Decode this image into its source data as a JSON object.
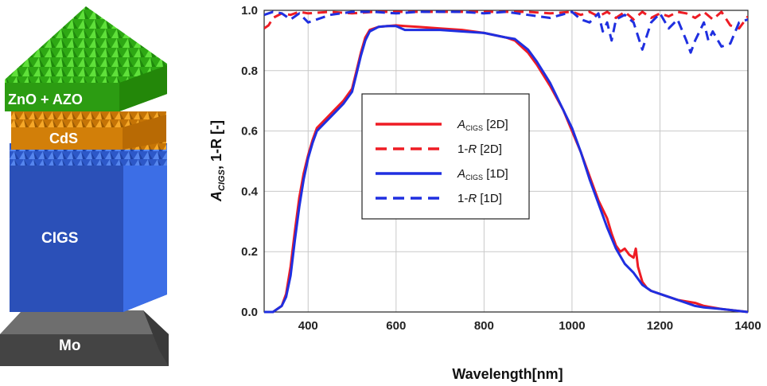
{
  "stack": {
    "layers": [
      {
        "label": "ZnO + AZO",
        "color": "#3ec61d"
      },
      {
        "label": "CdS",
        "color": "#e8920f"
      },
      {
        "label": "CIGS",
        "color": "#3a67d8"
      },
      {
        "label": "Mo",
        "color": "#555555"
      }
    ]
  },
  "chart_data": {
    "type": "line",
    "xlabel": "Wavelength[nm]",
    "ylabel_main": "A",
    "ylabel_sub": "CIGS",
    "ylabel_rest": ", 1-R [-]",
    "xlim": [
      300,
      1400
    ],
    "ylim": [
      0,
      1.0
    ],
    "xticks": [
      "400",
      "600",
      "800",
      "1000",
      "1200",
      "1400"
    ],
    "yticks": [
      "0.0",
      "0.2",
      "0.4",
      "0.6",
      "0.8",
      "1.0"
    ],
    "grid": true,
    "legend_position": "center-left",
    "legend": [
      {
        "main": "A",
        "sub": "CIGS",
        "tail": " [2D]",
        "color": "#ee1c24",
        "dash": "solid"
      },
      {
        "main": "1-",
        "italic": "R",
        "tail": " [2D]",
        "color": "#ee1c24",
        "dash": "dashed"
      },
      {
        "main": "A",
        "sub": "CIGS",
        "tail": " [1D]",
        "color": "#1f2fe0",
        "dash": "solid"
      },
      {
        "main": "1-",
        "italic": "R",
        "tail": " [1D]",
        "color": "#1f2fe0",
        "dash": "dashed"
      }
    ],
    "series": [
      {
        "name": "A_CIGS [2D]",
        "color": "#ee1c24",
        "dash": "solid",
        "x": [
          300,
          320,
          340,
          350,
          360,
          370,
          380,
          390,
          400,
          410,
          420,
          440,
          460,
          480,
          500,
          510,
          520,
          530,
          540,
          560,
          580,
          600,
          620,
          650,
          700,
          750,
          800,
          850,
          870,
          900,
          920,
          950,
          980,
          1000,
          1020,
          1040,
          1060,
          1070,
          1080,
          1090,
          1100,
          1110,
          1120,
          1130,
          1140,
          1145,
          1150,
          1160,
          1170,
          1180,
          1200,
          1220,
          1240,
          1260,
          1280,
          1300,
          1340,
          1400
        ],
        "y": [
          0.0,
          0.0,
          0.02,
          0.06,
          0.15,
          0.27,
          0.38,
          0.46,
          0.52,
          0.57,
          0.61,
          0.64,
          0.67,
          0.7,
          0.74,
          0.8,
          0.86,
          0.91,
          0.935,
          0.945,
          0.948,
          0.95,
          0.948,
          0.945,
          0.94,
          0.935,
          0.925,
          0.91,
          0.9,
          0.86,
          0.82,
          0.75,
          0.67,
          0.6,
          0.53,
          0.45,
          0.37,
          0.34,
          0.31,
          0.26,
          0.22,
          0.2,
          0.21,
          0.19,
          0.18,
          0.21,
          0.15,
          0.1,
          0.08,
          0.07,
          0.06,
          0.05,
          0.04,
          0.035,
          0.03,
          0.02,
          0.01,
          0.0
        ]
      },
      {
        "name": "1-R [2D]",
        "color": "#ee1c24",
        "dash": "dashed",
        "x": [
          300,
          310,
          320,
          340,
          360,
          380,
          400,
          450,
          500,
          550,
          600,
          650,
          700,
          750,
          800,
          850,
          900,
          950,
          1000,
          1020,
          1040,
          1060,
          1080,
          1100,
          1120,
          1140,
          1160,
          1180,
          1200,
          1220,
          1240,
          1260,
          1280,
          1300,
          1320,
          1340,
          1360,
          1380,
          1400
        ],
        "y": [
          0.94,
          0.95,
          0.975,
          0.99,
          0.985,
          0.995,
          0.99,
          0.995,
          0.99,
          0.995,
          0.995,
          0.995,
          0.995,
          0.995,
          0.995,
          0.995,
          0.995,
          0.99,
          0.995,
          0.985,
          0.995,
          0.98,
          0.995,
          0.975,
          0.995,
          0.97,
          0.995,
          0.975,
          0.99,
          0.98,
          0.995,
          0.99,
          0.975,
          0.995,
          0.97,
          0.995,
          0.95,
          0.94,
          0.98
        ]
      },
      {
        "name": "A_CIGS [1D]",
        "color": "#1f2fe0",
        "dash": "solid",
        "x": [
          300,
          320,
          340,
          350,
          360,
          370,
          380,
          390,
          400,
          410,
          420,
          440,
          460,
          480,
          500,
          510,
          520,
          530,
          540,
          560,
          580,
          600,
          620,
          650,
          700,
          750,
          800,
          850,
          870,
          900,
          920,
          950,
          980,
          1000,
          1020,
          1040,
          1060,
          1080,
          1100,
          1120,
          1140,
          1160,
          1180,
          1200,
          1220,
          1240,
          1260,
          1280,
          1300,
          1340,
          1400
        ],
        "y": [
          0.0,
          0.0,
          0.02,
          0.05,
          0.12,
          0.24,
          0.35,
          0.44,
          0.51,
          0.56,
          0.6,
          0.63,
          0.66,
          0.69,
          0.73,
          0.79,
          0.85,
          0.9,
          0.93,
          0.945,
          0.948,
          0.948,
          0.935,
          0.935,
          0.935,
          0.93,
          0.925,
          0.91,
          0.905,
          0.87,
          0.83,
          0.76,
          0.67,
          0.61,
          0.53,
          0.44,
          0.36,
          0.28,
          0.21,
          0.16,
          0.13,
          0.09,
          0.07,
          0.06,
          0.05,
          0.04,
          0.03,
          0.02,
          0.015,
          0.01,
          0.0
        ]
      },
      {
        "name": "1-R [1D]",
        "color": "#1f2fe0",
        "dash": "dashed",
        "x": [
          300,
          310,
          320,
          340,
          360,
          380,
          400,
          450,
          500,
          550,
          600,
          650,
          700,
          750,
          800,
          850,
          900,
          950,
          1000,
          1020,
          1040,
          1060,
          1070,
          1080,
          1090,
          1100,
          1120,
          1140,
          1160,
          1180,
          1200,
          1220,
          1240,
          1260,
          1270,
          1280,
          1300,
          1310,
          1320,
          1340,
          1360,
          1380,
          1400
        ],
        "y": [
          0.985,
          0.99,
          0.995,
          0.99,
          0.97,
          0.99,
          0.96,
          0.985,
          0.995,
          0.995,
          0.99,
          0.995,
          0.995,
          0.995,
          0.99,
          0.995,
          0.985,
          0.975,
          0.995,
          0.97,
          0.96,
          0.99,
          0.93,
          0.96,
          0.9,
          0.97,
          0.985,
          0.96,
          0.87,
          0.96,
          0.99,
          0.94,
          0.97,
          0.9,
          0.86,
          0.9,
          0.96,
          0.9,
          0.93,
          0.88,
          0.89,
          0.96,
          0.97
        ]
      }
    ]
  }
}
